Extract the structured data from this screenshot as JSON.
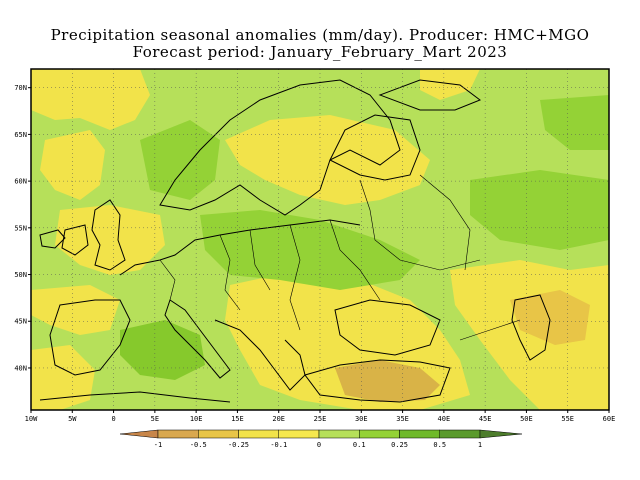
{
  "title": {
    "line1": "Precipitation seasonal anomalies (mm/day). Producer: HMC+MGO",
    "line2": "Forecast period: January_February_Mart 2023"
  },
  "map": {
    "lon_range": [
      -10,
      60
    ],
    "lat_range": [
      35.5,
      72
    ],
    "lat_ticks": [
      "70N",
      "65N",
      "60N",
      "55N",
      "50N",
      "45N",
      "40N"
    ],
    "lat_values": [
      70,
      65,
      60,
      55,
      50,
      45,
      40
    ],
    "lon_ticks": [
      "10W",
      "5W",
      "0",
      "5E",
      "10E",
      "15E",
      "20E",
      "25E",
      "30E",
      "35E",
      "40E",
      "45E",
      "50E",
      "55E",
      "60E"
    ],
    "lon_values": [
      -10,
      -5,
      0,
      5,
      10,
      15,
      20,
      25,
      30,
      35,
      40,
      45,
      50,
      55,
      60
    ],
    "grid": "dotted"
  },
  "legend": {
    "labels": [
      "-1",
      "-0.5",
      "-0.25",
      "-0.1",
      "0",
      "0.1",
      "0.25",
      "0.5",
      "1"
    ],
    "colors": [
      "#c8864a",
      "#d9a84f",
      "#e8c547",
      "#f2e34a",
      "#f6e84e",
      "#b6e05a",
      "#94d236",
      "#6fb92a",
      "#5a9a2c",
      "#4d7d2c"
    ]
  },
  "colors": {
    "dry_strong": "#c8a443",
    "dry": "#f2e34a",
    "neutral_wet": "#b6e05a",
    "wet": "#94d236",
    "wet_strong": "#7ec22a"
  }
}
